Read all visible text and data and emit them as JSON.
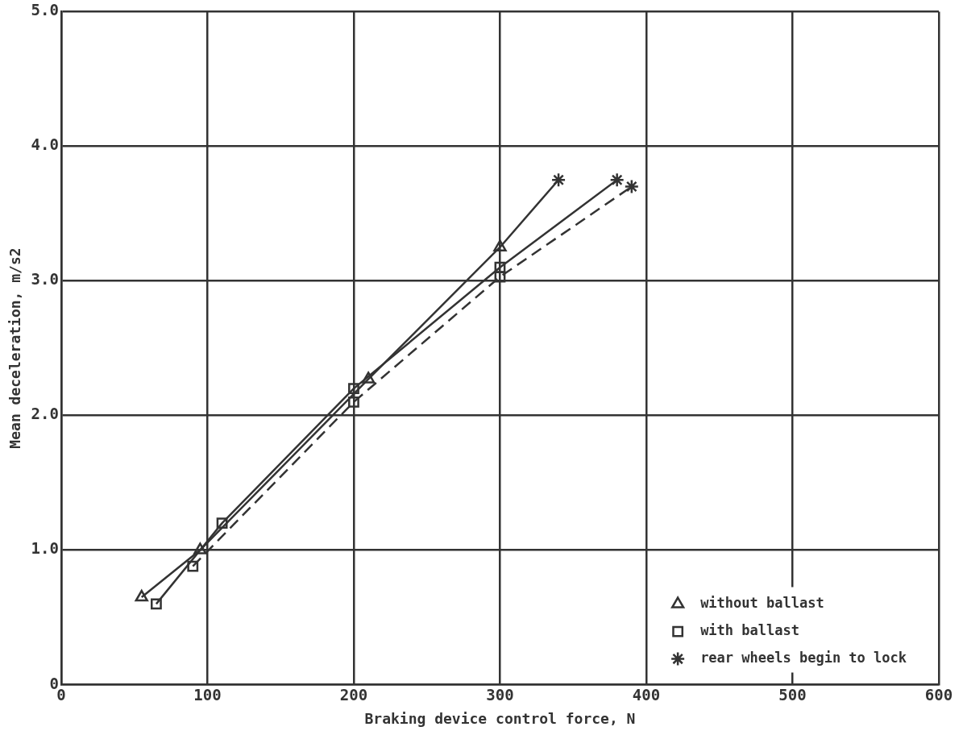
{
  "chart_data": {
    "type": "line",
    "xlabel": "Braking device control force, N",
    "ylabel": "Mean deceleration, m/s2",
    "xlim": [
      0,
      600
    ],
    "xticks": [
      0,
      100,
      200,
      300,
      400,
      500,
      600
    ],
    "ylim": [
      0,
      5
    ],
    "yticks": [
      0,
      {
        "value": 1,
        "label": "1.0"
      },
      {
        "value": 2,
        "label": "2.0"
      },
      {
        "value": 3,
        "label": "3.0"
      },
      {
        "value": 4,
        "label": "4.0"
      },
      {
        "value": 5,
        "label": "5.0"
      }
    ],
    "grid": true,
    "legend": "bottom right",
    "series": [
      {
        "name": "without ballast",
        "color": "#333333",
        "marker": "triangle",
        "line_style": "solid",
        "x": [
          55,
          95,
          210,
          300,
          340
        ],
        "values": [
          0.65,
          1.0,
          2.27,
          3.25,
          3.75
        ]
      },
      {
        "name": "with ballast",
        "color": "#333333",
        "marker": "square",
        "line_style": "solid",
        "x": [
          65,
          110,
          200,
          300,
          380
        ],
        "values": [
          0.6,
          1.2,
          2.2,
          3.1,
          3.75
        ]
      },
      {
        "color": "#333333",
        "marker": "square",
        "line_style": "dashed",
        "x": [
          90,
          200,
          300,
          390
        ],
        "values": [
          0.88,
          2.1,
          3.03,
          3.7
        ]
      },
      {
        "name": "rear wheels begin to lock",
        "type": "scatter",
        "color": "#333333",
        "marker": "cross",
        "x": [
          340,
          380,
          390
        ],
        "values": [
          3.75,
          3.75,
          3.7
        ]
      }
    ]
  }
}
